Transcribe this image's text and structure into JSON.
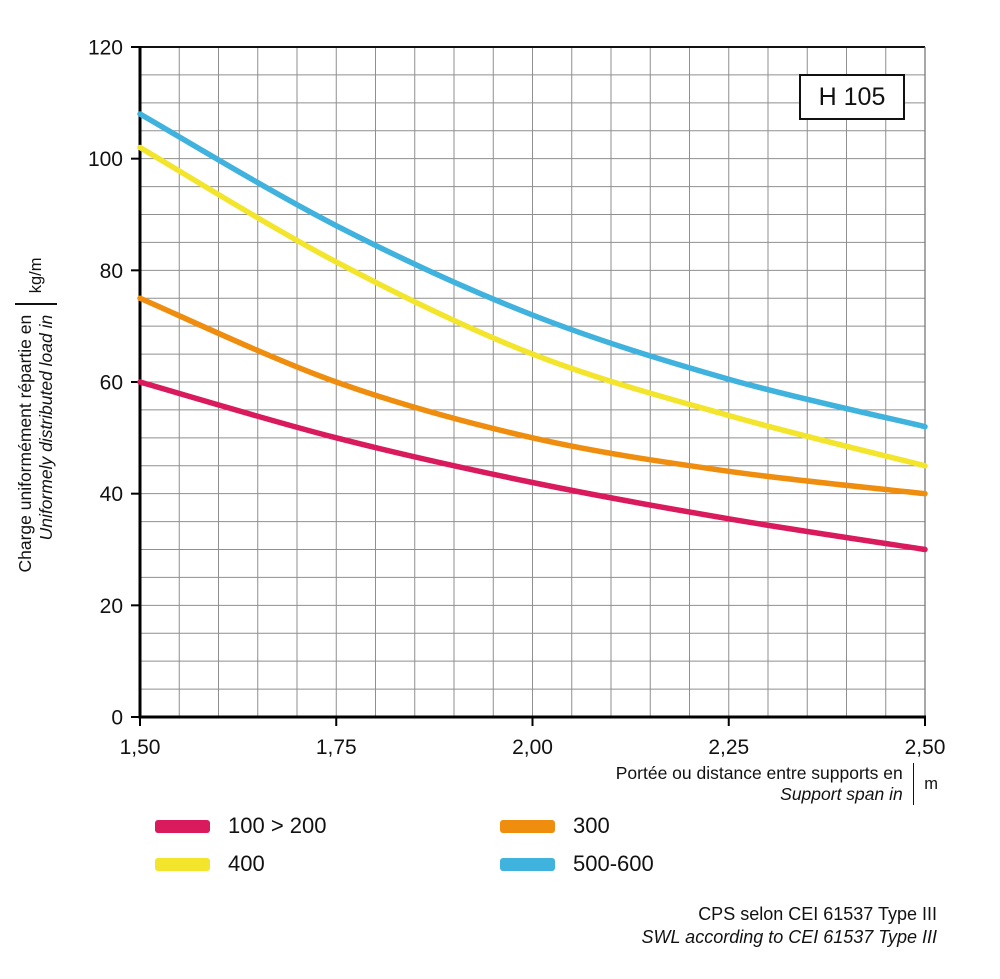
{
  "title_box": "H 105",
  "y_axis": {
    "label_fr": "Charge uniformément répartie en",
    "label_en": "Uniformely distributed load in",
    "unit": "kg/m"
  },
  "x_axis": {
    "label_fr": "Portée ou distance entre supports en",
    "label_en": "Support span in",
    "unit": "m"
  },
  "footer": {
    "line1": "CPS selon CEI 61537 Type III",
    "line2": "SWL according to CEI 61537 Type III"
  },
  "chart_data": {
    "type": "line",
    "title": "H 105",
    "xlabel": "Portée ou distance entre supports en / Support span in (m)",
    "ylabel": "Charge uniformément répartie en / Uniformely distributed load in (kg/m)",
    "xlim": [
      1.5,
      2.5
    ],
    "ylim": [
      0,
      120
    ],
    "x": [
      1.5,
      1.75,
      2.0,
      2.25,
      2.5
    ],
    "x_tick_labels": [
      "1,50",
      "1,75",
      "2,00",
      "2,25",
      "2,50"
    ],
    "y_ticks": [
      0,
      20,
      40,
      60,
      80,
      100,
      120
    ],
    "grid": {
      "on": true,
      "x_step": 0.05,
      "y_step": 5,
      "color": "#8f8f8f"
    },
    "legend_position": "bottom-left",
    "series": [
      {
        "name": "100 > 200",
        "color": "#d91a5d",
        "values": [
          60,
          50,
          42,
          35.5,
          30
        ]
      },
      {
        "name": "300",
        "color": "#ef8d0e",
        "values": [
          75,
          60,
          50,
          44,
          40
        ]
      },
      {
        "name": "400",
        "color": "#f2e52b",
        "values": [
          102,
          81.5,
          65,
          54,
          45
        ]
      },
      {
        "name": "500-600",
        "color": "#3fb2de",
        "values": [
          108,
          88,
          72,
          60.5,
          52
        ]
      }
    ]
  }
}
